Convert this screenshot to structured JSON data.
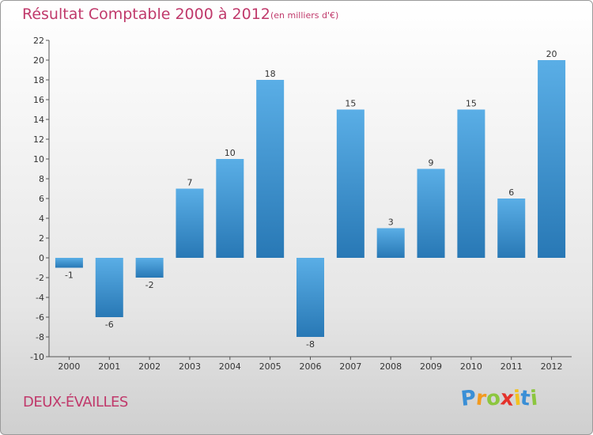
{
  "chart_data": {
    "type": "bar",
    "title": "Résultat Comptable 2000 à 2012",
    "subtitle": "(en milliers d'€)",
    "categories": [
      "2000",
      "2001",
      "2002",
      "2003",
      "2004",
      "2005",
      "2006",
      "2007",
      "2008",
      "2009",
      "2010",
      "2011",
      "2012"
    ],
    "values": [
      -1,
      -6,
      -2,
      7,
      10,
      18,
      -8,
      15,
      3,
      9,
      15,
      6,
      20
    ],
    "ylim": [
      -10,
      22
    ],
    "yticks": [
      -10,
      -8,
      -6,
      -4,
      -2,
      0,
      2,
      4,
      6,
      8,
      10,
      12,
      14,
      16,
      18,
      20,
      22
    ],
    "xlabel": "",
    "ylabel": "",
    "grid": false,
    "colors": {
      "bar_light": "#5aaee6",
      "bar_dark": "#2878b5"
    }
  },
  "footer": {
    "commune": "DEUX-ÉVAILLES",
    "logo_letters": [
      "P",
      "r",
      "o",
      "x",
      "i",
      "t",
      "i"
    ],
    "logo_colors": [
      "#3a8fd6",
      "#f29a1f",
      "#8cc63f",
      "#e4322b",
      "#f2c21f",
      "#3a8fd6",
      "#8cc63f"
    ]
  },
  "colors": {
    "accent": "#c0396b"
  }
}
